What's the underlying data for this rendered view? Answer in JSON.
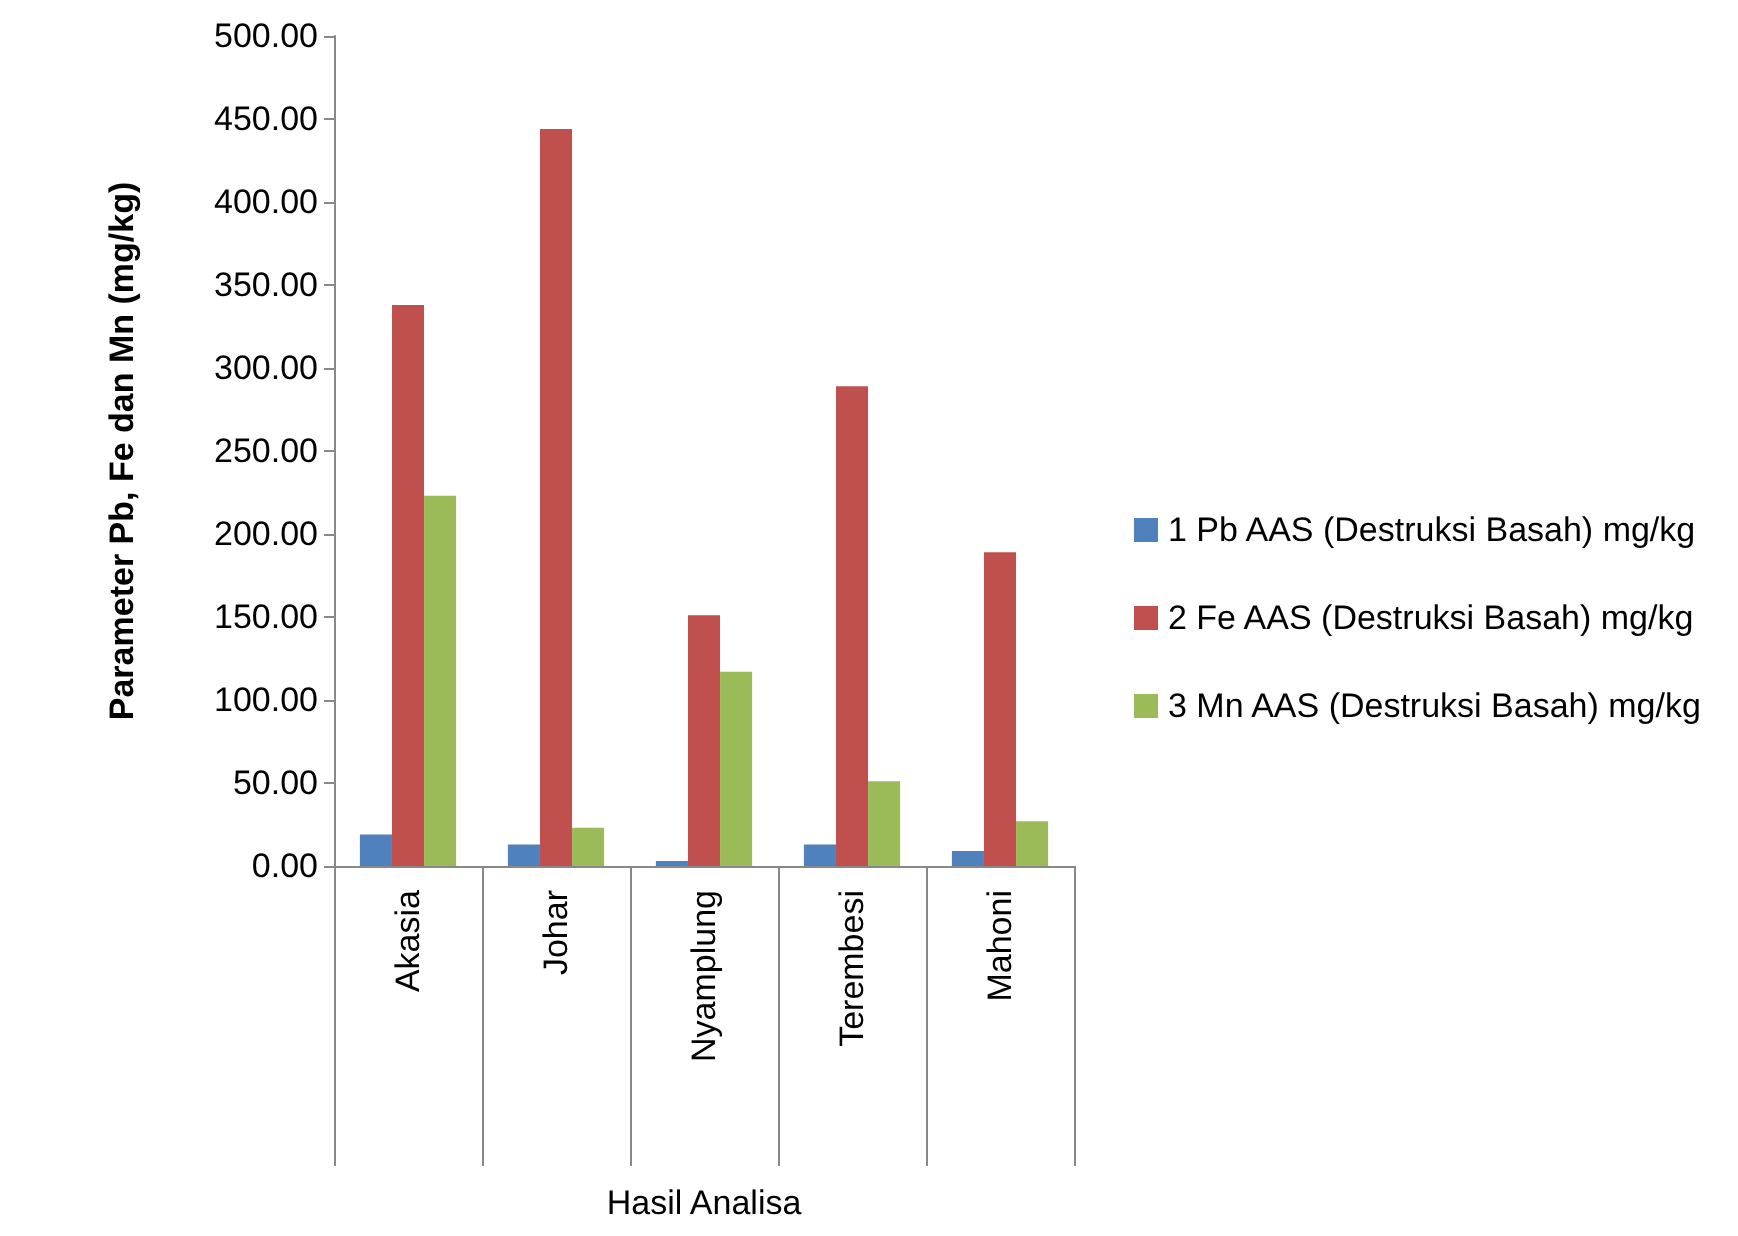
{
  "chart_data": {
    "type": "bar",
    "xlabel": "Hasil Analisa",
    "ylabel": "Parameter Pb, Fe dan Mn (mg/kg)",
    "categories": [
      "Akasia",
      "Johar",
      "Nyamplung",
      "Terembesi",
      "Mahoni"
    ],
    "series": [
      {
        "name": "1 Pb AAS (Destruksi Basah) mg/kg",
        "color": "#4f81bd",
        "values": [
          19,
          13,
          3,
          13,
          9
        ]
      },
      {
        "name": "2 Fe AAS (Destruksi Basah) mg/kg",
        "color": "#c0504d",
        "values": [
          338,
          444,
          151,
          289,
          189
        ]
      },
      {
        "name": "3 Mn AAS (Destruksi Basah) mg/kg",
        "color": "#9bbb59",
        "values": [
          223,
          23,
          117,
          51,
          27
        ]
      }
    ],
    "ylim": [
      0,
      500
    ],
    "yticks": [
      {
        "value": 0,
        "label": "0.00"
      },
      {
        "value": 50,
        "label": "50.00"
      },
      {
        "value": 100,
        "label": "100.00"
      },
      {
        "value": 150,
        "label": "150.00"
      },
      {
        "value": 200,
        "label": "200.00"
      },
      {
        "value": 250,
        "label": "250.00"
      },
      {
        "value": 300,
        "label": "300.00"
      },
      {
        "value": 350,
        "label": "350.00"
      },
      {
        "value": 400,
        "label": "400.00"
      },
      {
        "value": 450,
        "label": "450.00"
      },
      {
        "value": 500,
        "label": "500.00"
      }
    ],
    "grid": false,
    "legend": "right"
  }
}
